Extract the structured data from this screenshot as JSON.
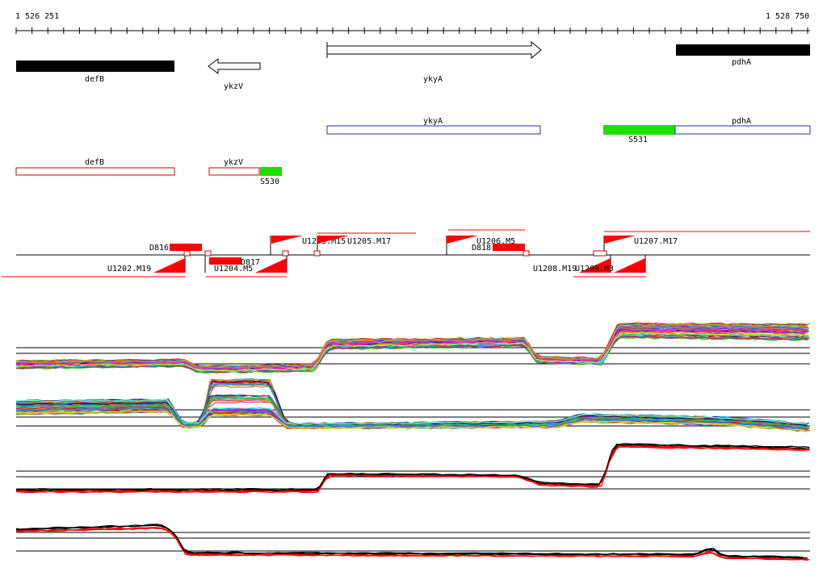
{
  "coordinates": {
    "start_label": "1 526 251",
    "end_label": "1 528 750"
  },
  "colors": {
    "gene": "#000000",
    "transcript_outline": "#2233aa",
    "operon_outline": "#cc0000",
    "site": "#22dd00",
    "feature": "#ff0000",
    "trace_dark": "#000000",
    "trace_red": "#ff0000"
  },
  "genes": [
    {
      "name": "defB",
      "strand": "minus",
      "style": "filled"
    },
    {
      "name": "ykzV",
      "strand": "minus",
      "style": "arrow"
    },
    {
      "name": "ykyA",
      "strand": "plus",
      "style": "arrow"
    },
    {
      "name": "pdhA",
      "strand": "plus",
      "style": "filled"
    }
  ],
  "transcripts": [
    {
      "name": "ykyA"
    },
    {
      "name": "pdhA"
    }
  ],
  "operons": [
    {
      "name": "defB"
    },
    {
      "name": "ykzV"
    }
  ],
  "sites": [
    {
      "name": "S531"
    },
    {
      "name": "S530"
    }
  ],
  "features": {
    "down": [
      {
        "name": "D816"
      },
      {
        "name": "D817"
      },
      {
        "name": "D818"
      }
    ],
    "up": [
      {
        "name": "U1202.M19"
      },
      {
        "name": "U1203.M15"
      },
      {
        "name": "U1204.M5"
      },
      {
        "name": "U1205.M17"
      },
      {
        "name": "U1206.M5"
      },
      {
        "name": "U1207.M17"
      },
      {
        "name": "U1208.M19"
      },
      {
        "name": "U1209.M3"
      }
    ]
  },
  "expression_panels": [
    {
      "name": "profile-panel-1",
      "traces": "multicolor"
    },
    {
      "name": "profile-panel-2",
      "traces": "multicolor"
    },
    {
      "name": "profile-panel-3",
      "traces": "black-red"
    },
    {
      "name": "profile-panel-4",
      "traces": "black-red"
    }
  ]
}
